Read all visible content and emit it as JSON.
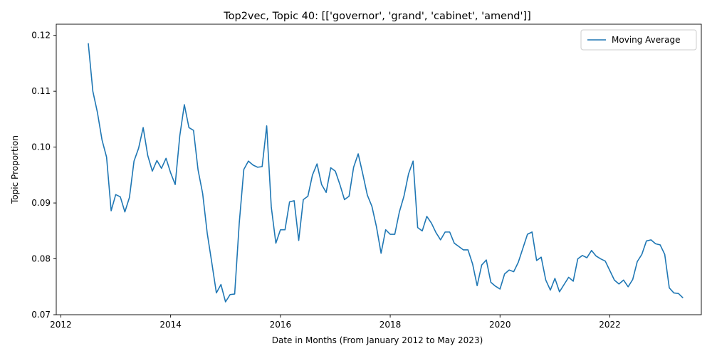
{
  "chart_data": {
    "type": "line",
    "title": "Top2vec, Topic 40: [['governor', 'grand', 'cabinet', 'amend']]",
    "xlabel": "Date in Months (From January 2012 to May 2023)",
    "ylabel": "Topic Proportion",
    "xlim": [
      "2011-12",
      "2023-09"
    ],
    "ylim": [
      0.07,
      0.122
    ],
    "x_ticks": [
      "2012",
      "2014",
      "2016",
      "2018",
      "2020",
      "2022"
    ],
    "y_ticks": [
      "0.07",
      "0.08",
      "0.09",
      "0.10",
      "0.11",
      "0.12"
    ],
    "legend_position": "top-right",
    "grid": false,
    "series": [
      {
        "name": "Moving Average",
        "color": "#1f77b4",
        "x": [
          "2012-07",
          "2012-08",
          "2012-09",
          "2012-10",
          "2012-11",
          "2012-12",
          "2013-01",
          "2013-02",
          "2013-03",
          "2013-04",
          "2013-05",
          "2013-06",
          "2013-07",
          "2013-08",
          "2013-09",
          "2013-10",
          "2013-11",
          "2013-12",
          "2014-01",
          "2014-02",
          "2014-03",
          "2014-04",
          "2014-05",
          "2014-06",
          "2014-07",
          "2014-08",
          "2014-09",
          "2014-10",
          "2014-11",
          "2014-12",
          "2015-01",
          "2015-02",
          "2015-03",
          "2015-04",
          "2015-05",
          "2015-06",
          "2015-07",
          "2015-08",
          "2015-09",
          "2015-10",
          "2015-11",
          "2015-12",
          "2016-01",
          "2016-02",
          "2016-03",
          "2016-04",
          "2016-05",
          "2016-06",
          "2016-07",
          "2016-08",
          "2016-09",
          "2016-10",
          "2016-11",
          "2016-12",
          "2017-01",
          "2017-02",
          "2017-03",
          "2017-04",
          "2017-05",
          "2017-06",
          "2017-07",
          "2017-08",
          "2017-09",
          "2017-10",
          "2017-11",
          "2017-12",
          "2018-01",
          "2018-02",
          "2018-03",
          "2018-04",
          "2018-05",
          "2018-06",
          "2018-07",
          "2018-08",
          "2018-09",
          "2018-10",
          "2018-11",
          "2018-12",
          "2019-01",
          "2019-02",
          "2019-03",
          "2019-04",
          "2019-05",
          "2019-06",
          "2019-07",
          "2019-08",
          "2019-09",
          "2019-10",
          "2019-11",
          "2019-12",
          "2020-01",
          "2020-02",
          "2020-03",
          "2020-04",
          "2020-05",
          "2020-06",
          "2020-07",
          "2020-08",
          "2020-09",
          "2020-10",
          "2020-11",
          "2020-12",
          "2021-01",
          "2021-02",
          "2021-03",
          "2021-04",
          "2021-05",
          "2021-06",
          "2021-07",
          "2021-08",
          "2021-09",
          "2021-10",
          "2021-11",
          "2021-12",
          "2022-01",
          "2022-02",
          "2022-03",
          "2022-04",
          "2022-05",
          "2022-06",
          "2022-07",
          "2022-08",
          "2022-09",
          "2022-10",
          "2022-11",
          "2022-12",
          "2023-01",
          "2023-02",
          "2023-03",
          "2023-04",
          "2023-05"
        ],
        "values": [
          0.1186,
          0.11,
          0.1062,
          0.1013,
          0.0982,
          0.0886,
          0.0915,
          0.0911,
          0.0884,
          0.091,
          0.0975,
          0.0998,
          0.1035,
          0.0985,
          0.0957,
          0.0976,
          0.0962,
          0.098,
          0.0954,
          0.0933,
          0.102,
          0.1076,
          0.1035,
          0.103,
          0.0959,
          0.0917,
          0.0846,
          0.0793,
          0.0739,
          0.0754,
          0.0723,
          0.0736,
          0.0737,
          0.0864,
          0.096,
          0.0975,
          0.0968,
          0.0964,
          0.0965,
          0.1038,
          0.0893,
          0.0828,
          0.0852,
          0.0852,
          0.0902,
          0.0904,
          0.0833,
          0.0906,
          0.0912,
          0.095,
          0.097,
          0.0933,
          0.0919,
          0.0963,
          0.0957,
          0.0933,
          0.0906,
          0.0912,
          0.0964,
          0.0988,
          0.0952,
          0.0914,
          0.0894,
          0.0857,
          0.081,
          0.0852,
          0.0844,
          0.0844,
          0.0884,
          0.0912,
          0.0952,
          0.0975,
          0.0856,
          0.085,
          0.0876,
          0.0864,
          0.0847,
          0.0834,
          0.0848,
          0.0848,
          0.0828,
          0.0822,
          0.0816,
          0.0816,
          0.0791,
          0.0752,
          0.0789,
          0.0798,
          0.0758,
          0.0751,
          0.0746,
          0.0773,
          0.078,
          0.0777,
          0.0794,
          0.0819,
          0.0844,
          0.0848,
          0.0797,
          0.0803,
          0.0762,
          0.0744,
          0.0765,
          0.0741,
          0.0754,
          0.0767,
          0.076,
          0.08,
          0.0806,
          0.0802,
          0.0815,
          0.0805,
          0.08,
          0.0796,
          0.0779,
          0.0762,
          0.0755,
          0.0762,
          0.075,
          0.0763,
          0.0795,
          0.0808,
          0.0832,
          0.0834,
          0.0827,
          0.0825,
          0.0808,
          0.0748,
          0.0739,
          0.0738,
          0.073
        ]
      }
    ]
  }
}
